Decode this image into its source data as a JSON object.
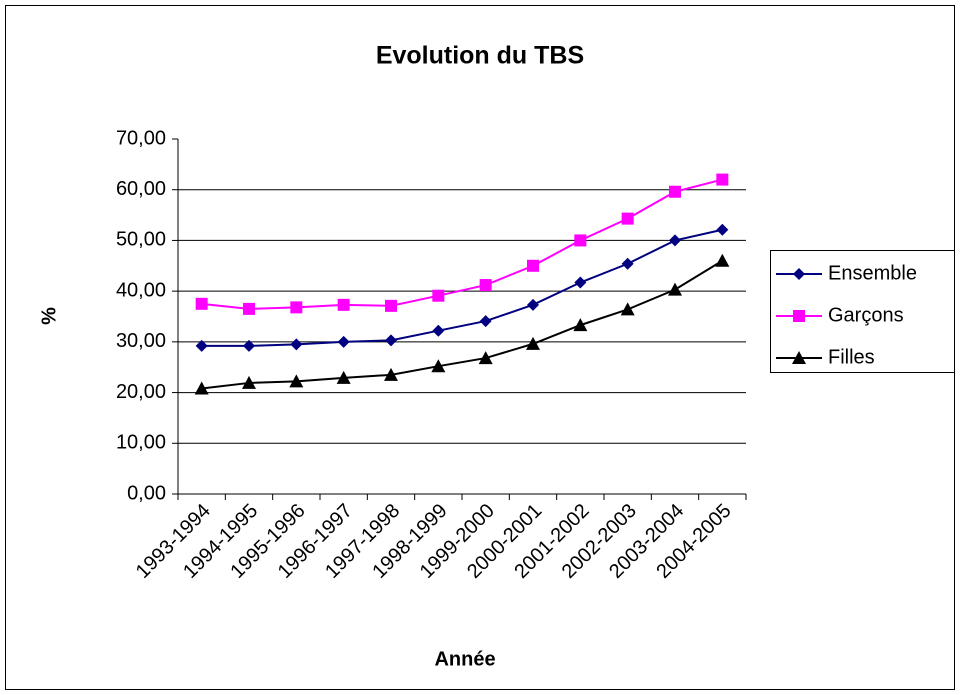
{
  "chart_data": {
    "type": "line",
    "title": "Evolution du TBS",
    "x_label": "Année",
    "y_label": "%",
    "categories": [
      "1993-1994",
      "1994-1995",
      "1995-1996",
      "1996-1997",
      "1997-1998",
      "1998-1999",
      "1999-2000",
      "2000-2001",
      "2001-2002",
      "2002-2003",
      "2003-2004",
      "2004-2005"
    ],
    "series": [
      {
        "name": "Ensemble",
        "color": "#000080",
        "marker": "diamond",
        "values": [
          29.2,
          29.2,
          29.5,
          30.0,
          30.3,
          32.2,
          34.1,
          37.3,
          41.7,
          45.4,
          50.0,
          52.1
        ]
      },
      {
        "name": "Garçons",
        "color": "#ff00ff",
        "marker": "square",
        "values": [
          37.5,
          36.5,
          36.8,
          37.3,
          37.1,
          39.1,
          41.2,
          45.0,
          50.0,
          54.3,
          59.6,
          62.0
        ]
      },
      {
        "name": "Filles",
        "color": "#000000",
        "marker": "triangle",
        "values": [
          20.8,
          21.9,
          22.2,
          22.9,
          23.5,
          25.2,
          26.8,
          29.6,
          33.3,
          36.4,
          40.3,
          46.0
        ]
      }
    ],
    "ylim": [
      0,
      70
    ],
    "yticks": [
      {
        "value": 0,
        "label": "0,00"
      },
      {
        "value": 10,
        "label": "10,00"
      },
      {
        "value": 20,
        "label": "20,00"
      },
      {
        "value": 30,
        "label": "30,00"
      },
      {
        "value": 40,
        "label": "40,00"
      },
      {
        "value": 50,
        "label": "50,00"
      },
      {
        "value": 60,
        "label": "60,00"
      },
      {
        "value": 70,
        "label": "70,00"
      }
    ],
    "grid": true,
    "legend": "right"
  }
}
